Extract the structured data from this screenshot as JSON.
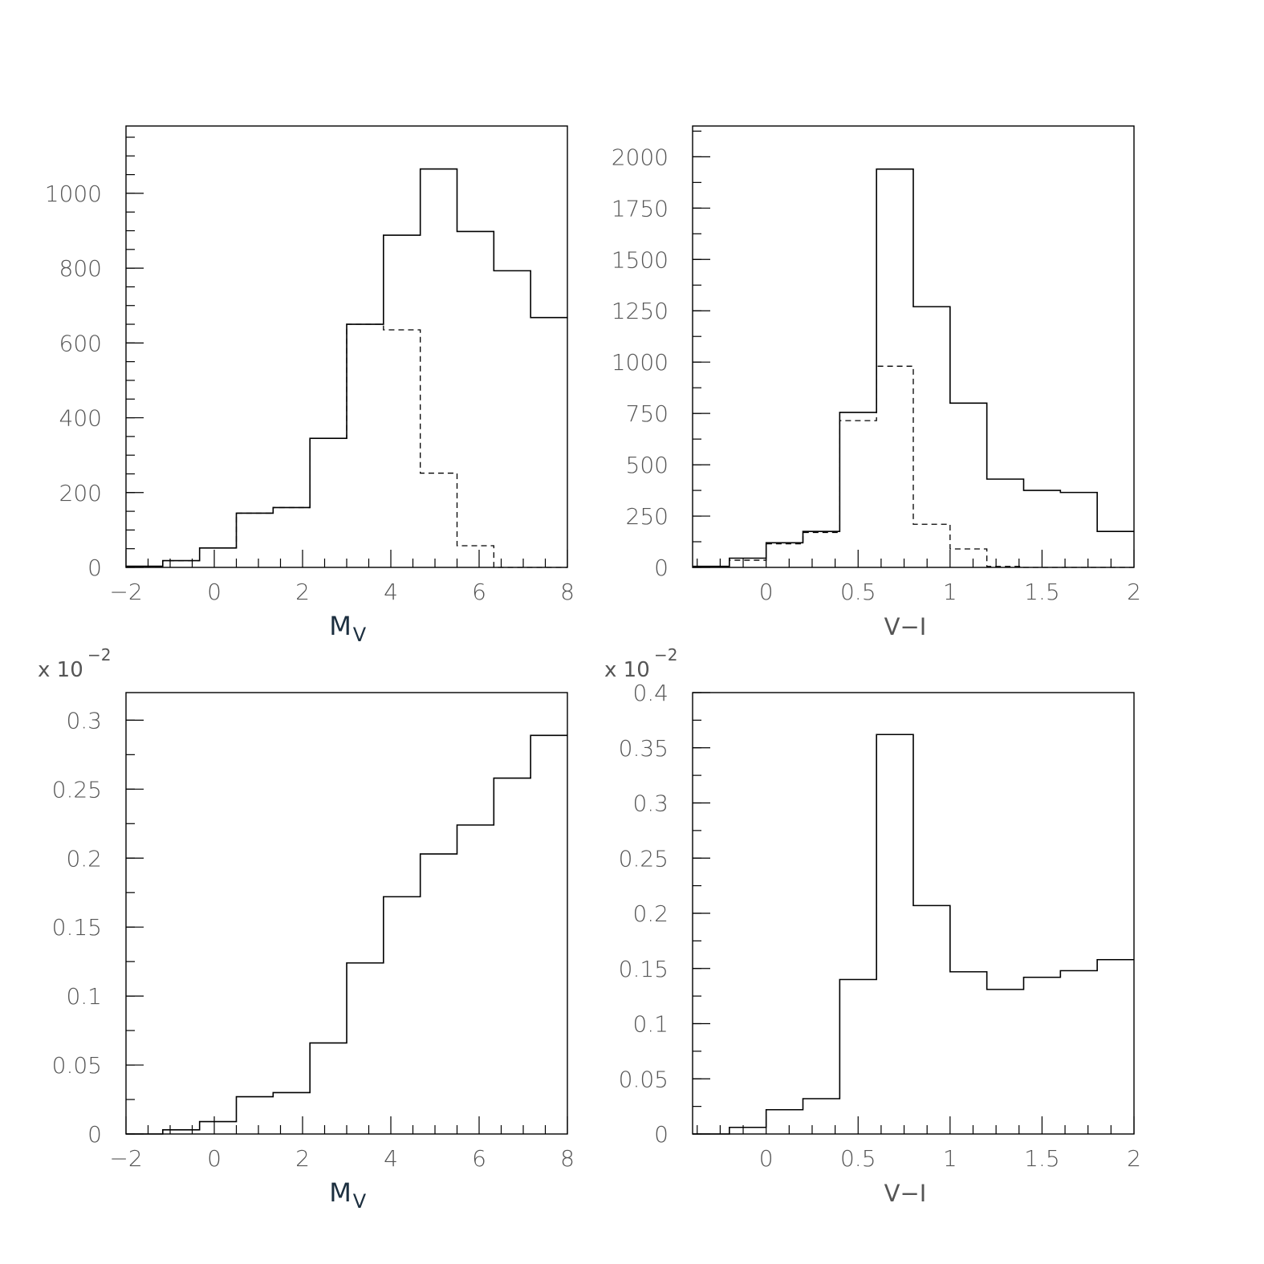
{
  "chart_data": [
    {
      "id": "top-left",
      "type": "histogram",
      "xlabel": "M",
      "xlabel_sub": "V",
      "ylabel": "",
      "title": "",
      "xlim": [
        -2,
        8
      ],
      "ylim": [
        0,
        1180
      ],
      "xticks": [
        -2,
        0,
        2,
        4,
        6,
        8
      ],
      "xtick_labels": [
        "−2",
        "0",
        "2",
        "4",
        "6",
        "8"
      ],
      "yticks": [
        0,
        200,
        400,
        600,
        800,
        1000
      ],
      "ytick_labels": [
        "0",
        "200",
        "400",
        "600",
        "800",
        "1000"
      ],
      "ytick_minor_step": 50,
      "multiplier_text": "",
      "multiplier_exp": "",
      "bin_edges": [
        -2,
        -1.167,
        -0.333,
        0.5,
        1.333,
        2.167,
        3.0,
        3.833,
        4.667,
        5.5,
        6.333,
        7.167,
        8.0
      ],
      "series": [
        {
          "style": "solid",
          "values": [
            3,
            18,
            52,
            145,
            160,
            345,
            650,
            888,
            1065,
            898,
            793,
            668
          ]
        },
        {
          "style": "dashed",
          "values": [
            3,
            18,
            52,
            145,
            160,
            345,
            650,
            635,
            252,
            58,
            0,
            0
          ]
        }
      ]
    },
    {
      "id": "top-right",
      "type": "histogram",
      "xlabel": "V−I",
      "xlabel_sub": "",
      "ylabel": "",
      "title": "",
      "xlim": [
        -0.4,
        2
      ],
      "ylim": [
        0,
        2150
      ],
      "xticks": [
        0,
        0.5,
        1,
        1.5,
        2
      ],
      "xtick_labels": [
        "0",
        "0.5",
        "1",
        "1.5",
        "2"
      ],
      "yticks": [
        0,
        250,
        500,
        750,
        1000,
        1250,
        1500,
        1750,
        2000
      ],
      "ytick_labels": [
        "0",
        "250",
        "500",
        "750",
        "1000",
        "1250",
        "1500",
        "1750",
        "2000"
      ],
      "ytick_minor_step": 125,
      "multiplier_text": "",
      "multiplier_exp": "",
      "bin_edges": [
        -0.4,
        -0.2,
        0.0,
        0.2,
        0.4,
        0.6,
        0.8,
        1.0,
        1.2,
        1.4,
        1.6,
        1.8,
        2.0
      ],
      "series": [
        {
          "style": "solid",
          "values": [
            5,
            45,
            120,
            175,
            755,
            1940,
            1270,
            800,
            430,
            375,
            365,
            175
          ]
        },
        {
          "style": "dashed",
          "values": [
            5,
            35,
            115,
            170,
            715,
            980,
            210,
            90,
            5,
            0,
            0,
            0
          ]
        }
      ]
    },
    {
      "id": "bottom-left",
      "type": "histogram",
      "xlabel": "M",
      "xlabel_sub": "V",
      "ylabel": "",
      "title": "",
      "xlim": [
        -2,
        8
      ],
      "ylim": [
        0,
        0.32
      ],
      "xticks": [
        -2,
        0,
        2,
        4,
        6,
        8
      ],
      "xtick_labels": [
        "−2",
        "0",
        "2",
        "4",
        "6",
        "8"
      ],
      "yticks": [
        0,
        0.05,
        0.1,
        0.15,
        0.2,
        0.25,
        0.3
      ],
      "ytick_labels": [
        "0",
        "0.05",
        "0.1",
        "0.15",
        "0.2",
        "0.25",
        "0.3"
      ],
      "ytick_minor_step": 0.025,
      "multiplier_text": "x 10",
      "multiplier_exp": "−2",
      "bin_edges": [
        -2,
        -1.167,
        -0.333,
        0.5,
        1.333,
        2.167,
        3.0,
        3.833,
        4.667,
        5.5,
        6.333,
        7.167,
        8.0
      ],
      "series": [
        {
          "style": "solid",
          "values": [
            0.0,
            0.003,
            0.009,
            0.027,
            0.03,
            0.066,
            0.124,
            0.172,
            0.203,
            0.224,
            0.258,
            0.289
          ]
        }
      ]
    },
    {
      "id": "bottom-right",
      "type": "histogram",
      "xlabel": "V−I",
      "xlabel_sub": "",
      "ylabel": "",
      "title": "",
      "xlim": [
        -0.4,
        2
      ],
      "ylim": [
        0,
        0.4
      ],
      "xticks": [
        0,
        0.5,
        1,
        1.5,
        2
      ],
      "xtick_labels": [
        "0",
        "0.5",
        "1",
        "1.5",
        "2"
      ],
      "yticks": [
        0,
        0.05,
        0.1,
        0.15,
        0.2,
        0.25,
        0.3,
        0.35,
        0.4
      ],
      "ytick_labels": [
        "0",
        "0.05",
        "0.1",
        "0.15",
        "0.2",
        "0.25",
        "0.3",
        "0.35",
        "0.4"
      ],
      "ytick_minor_step": 0.025,
      "multiplier_text": "x 10",
      "multiplier_exp": "−2",
      "bin_edges": [
        -0.4,
        -0.2,
        0.0,
        0.2,
        0.4,
        0.6,
        0.8,
        1.0,
        1.2,
        1.4,
        1.6,
        1.8,
        2.0
      ],
      "series": [
        {
          "style": "solid",
          "values": [
            0.0,
            0.006,
            0.022,
            0.032,
            0.14,
            0.362,
            0.207,
            0.147,
            0.131,
            0.142,
            0.148,
            0.158
          ]
        }
      ]
    }
  ]
}
